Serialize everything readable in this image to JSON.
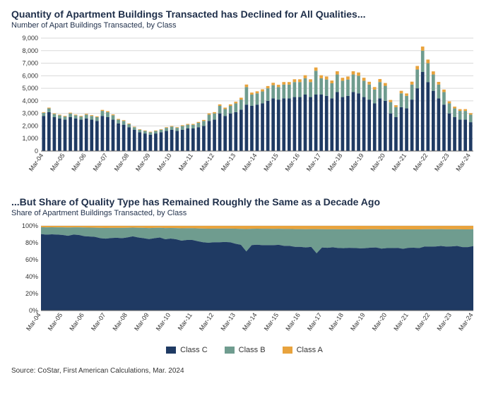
{
  "colors": {
    "classC": "#1f3a63",
    "classB": "#6f9c8f",
    "classA": "#e8a33d",
    "grid": "#d9d9d9",
    "axis": "#666666",
    "text": "#1f2f4a",
    "background": "#ffffff"
  },
  "top_chart": {
    "type": "stacked-bar",
    "title": "Quantity of Apartment Buildings Transacted has Declined for All Qualities...",
    "subtitle": "Number of Apart Buildings Transacted, by Class",
    "ylim": [
      0,
      9000
    ],
    "ytick_step": 1000,
    "bar_width": 0.62,
    "title_fontsize": 14,
    "subtitle_fontsize": 11,
    "axis_fontsize": 9
  },
  "bottom_chart": {
    "type": "stacked-area-percent",
    "title": "...But Share of Quality Type has Remained Roughly the Same as a Decade Ago",
    "subtitle": "Share of Apartment Buildings Transacted, by Class",
    "ylim": [
      0,
      100
    ],
    "ytick_step": 20,
    "title_fontsize": 14,
    "subtitle_fontsize": 11,
    "axis_fontsize": 9
  },
  "categories": [
    "Mar-04",
    "Jun-04",
    "Sep-04",
    "Dec-04",
    "Mar-05",
    "Jun-05",
    "Sep-05",
    "Dec-05",
    "Mar-06",
    "Jun-06",
    "Sep-06",
    "Dec-06",
    "Mar-07",
    "Jun-07",
    "Sep-07",
    "Dec-07",
    "Mar-08",
    "Jun-08",
    "Sep-08",
    "Dec-08",
    "Mar-09",
    "Jun-09",
    "Sep-09",
    "Dec-09",
    "Mar-10",
    "Jun-10",
    "Sep-10",
    "Dec-10",
    "Mar-11",
    "Jun-11",
    "Sep-11",
    "Dec-11",
    "Mar-12",
    "Jun-12",
    "Sep-12",
    "Dec-12",
    "Mar-13",
    "Jun-13",
    "Sep-13",
    "Dec-13",
    "Mar-14",
    "Jun-14",
    "Sep-14",
    "Dec-14",
    "Mar-15",
    "Jun-15",
    "Sep-15",
    "Dec-15",
    "Mar-16",
    "Jun-16",
    "Sep-16",
    "Dec-16",
    "Mar-17",
    "Jun-17",
    "Sep-17",
    "Dec-17",
    "Mar-18",
    "Jun-18",
    "Sep-18",
    "Dec-18",
    "Mar-19",
    "Jun-19",
    "Sep-19",
    "Dec-19",
    "Mar-20",
    "Jun-20",
    "Sep-20",
    "Dec-20",
    "Mar-21",
    "Jun-21",
    "Sep-21",
    "Dec-21",
    "Mar-22",
    "Jun-22",
    "Sep-22",
    "Dec-22",
    "Mar-23",
    "Jun-23",
    "Sep-23",
    "Dec-23",
    "Mar-24"
  ],
  "x_tick_labels": [
    "Mar-04",
    "Mar-05",
    "Mar-06",
    "Mar-07",
    "Mar-08",
    "Mar-09",
    "Mar-10",
    "Mar-11",
    "Mar-12",
    "Mar-13",
    "Mar-14",
    "Mar-15",
    "Mar-16",
    "Mar-17",
    "Mar-18",
    "Mar-19",
    "Mar-20",
    "Mar-21",
    "Mar-22",
    "Mar-23",
    "Mar-24"
  ],
  "series": {
    "classC": [
      2800,
      3100,
      2700,
      2600,
      2500,
      2700,
      2600,
      2500,
      2600,
      2500,
      2400,
      2800,
      2700,
      2500,
      2200,
      2100,
      1900,
      1700,
      1500,
      1400,
      1300,
      1400,
      1500,
      1600,
      1700,
      1600,
      1700,
      1800,
      1800,
      1900,
      2000,
      2400,
      2500,
      3000,
      2800,
      3000,
      3100,
      3300,
      3700,
      3600,
      3700,
      3800,
      4000,
      4200,
      4100,
      4200,
      4200,
      4300,
      4300,
      4500,
      4300,
      4500,
      4500,
      4400,
      4200,
      4700,
      4300,
      4400,
      4700,
      4600,
      4300,
      4100,
      3800,
      4200,
      4000,
      3000,
      2700,
      3500,
      3400,
      4100,
      5000,
      6300,
      5500,
      4800,
      4200,
      3700,
      3000,
      2700,
      2500,
      2500,
      2300
    ],
    "classB": [
      250,
      300,
      250,
      250,
      250,
      300,
      250,
      250,
      300,
      300,
      300,
      400,
      400,
      350,
      300,
      300,
      250,
      200,
      200,
      200,
      200,
      200,
      200,
      250,
      250,
      250,
      300,
      300,
      300,
      350,
      400,
      500,
      500,
      600,
      550,
      600,
      700,
      800,
      1400,
      900,
      900,
      950,
      1000,
      1050,
      1000,
      1100,
      1100,
      1200,
      1200,
      1300,
      1200,
      1900,
      1300,
      1300,
      1200,
      1400,
      1300,
      1300,
      1400,
      1400,
      1300,
      1200,
      1100,
      1300,
      1200,
      900,
      800,
      1100,
      1000,
      1200,
      1500,
      1700,
      1500,
      1300,
      1100,
      1000,
      800,
      700,
      700,
      700,
      600
    ],
    "classA": [
      50,
      60,
      50,
      50,
      50,
      60,
      50,
      50,
      60,
      60,
      60,
      80,
      80,
      70,
      60,
      60,
      50,
      40,
      40,
      40,
      40,
      40,
      40,
      50,
      50,
      50,
      60,
      60,
      60,
      70,
      80,
      100,
      100,
      120,
      110,
      120,
      130,
      150,
      200,
      160,
      160,
      170,
      180,
      190,
      180,
      200,
      200,
      220,
      220,
      240,
      220,
      260,
      240,
      240,
      220,
      260,
      240,
      240,
      260,
      260,
      240,
      220,
      200,
      240,
      220,
      170,
      150,
      200,
      190,
      230,
      280,
      330,
      290,
      250,
      210,
      200,
      160,
      140,
      140,
      140,
      120
    ]
  },
  "legend": {
    "items": [
      {
        "label": "Class C",
        "color_key": "classC"
      },
      {
        "label": "Class B",
        "color_key": "classB"
      },
      {
        "label": "Class A",
        "color_key": "classA"
      }
    ]
  },
  "source": "Source: CoStar, First American Calculations, Mar. 2024"
}
